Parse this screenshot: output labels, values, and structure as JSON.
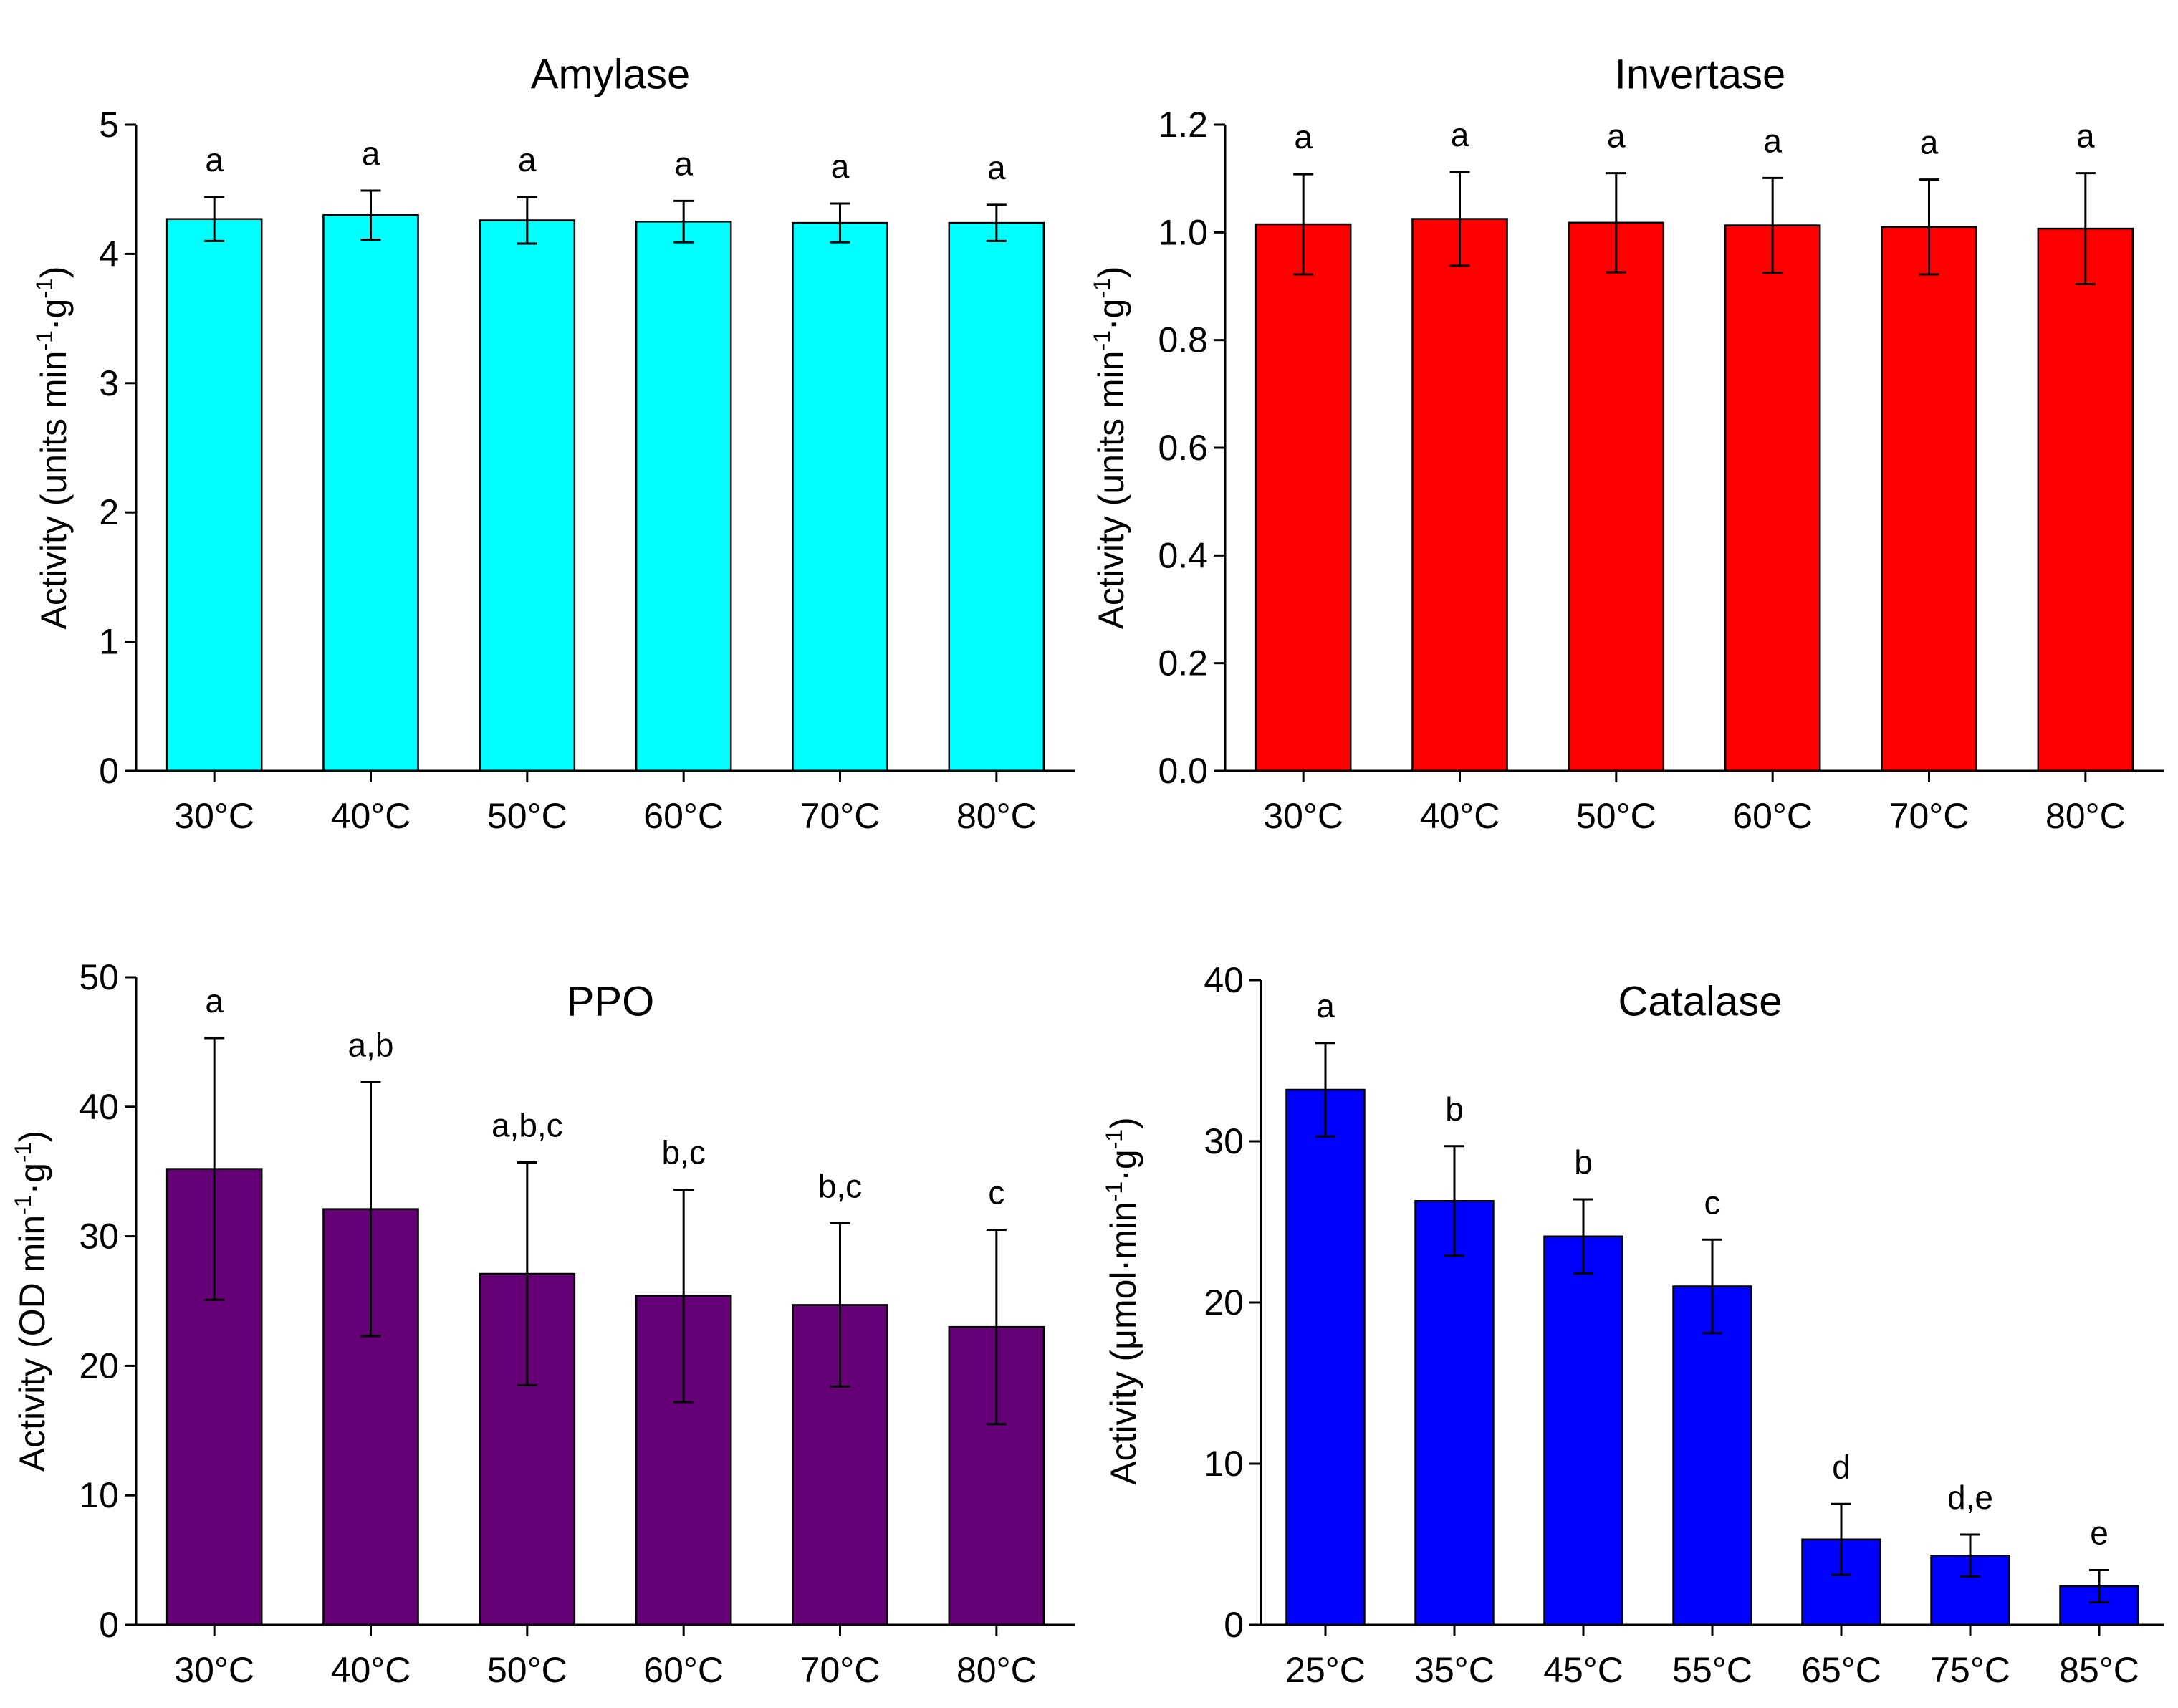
{
  "chart_data": [
    {
      "type": "bar",
      "title": "Amylase",
      "ylabel": "Activity (units min⁻¹·g⁻¹)",
      "ylabel_parts": [
        "Activity (units min",
        "-1",
        "·g",
        "-1",
        ")"
      ],
      "xlabel": "",
      "ylim": [
        0,
        5
      ],
      "yticks": [
        "0",
        "1",
        "2",
        "3",
        "4",
        "5"
      ],
      "categories": [
        "30°C",
        "40°C",
        "50°C",
        "60°C",
        "70°C",
        "80°C"
      ],
      "values": [
        4.27,
        4.3,
        4.26,
        4.25,
        4.24,
        4.24
      ],
      "errors": [
        0.17,
        0.19,
        0.18,
        0.16,
        0.15,
        0.14
      ],
      "significance": [
        "a",
        "a",
        "a",
        "a",
        "a",
        "a"
      ],
      "color": "#00FFFF"
    },
    {
      "type": "bar",
      "title": "Invertase",
      "ylabel": "Activity (units min⁻¹·g⁻¹)",
      "ylabel_parts": [
        "Activity (units min",
        "-1",
        "·g",
        "-1",
        ")"
      ],
      "xlabel": "",
      "ylim": [
        0,
        1.2
      ],
      "yticks": [
        "0.0",
        "0.2",
        "0.4",
        "0.6",
        "0.8",
        "1.0",
        "1.2"
      ],
      "categories": [
        "30°C",
        "40°C",
        "50°C",
        "60°C",
        "70°C",
        "80°C"
      ],
      "values": [
        1.015,
        1.025,
        1.018,
        1.013,
        1.01,
        1.007
      ],
      "errors": [
        0.093,
        0.087,
        0.092,
        0.088,
        0.088,
        0.103
      ],
      "significance": [
        "a",
        "a",
        "a",
        "a",
        "a",
        "a"
      ],
      "color": "#FF0000"
    },
    {
      "type": "bar",
      "title": "PPO",
      "ylabel": "Activity (OD min⁻¹·g⁻¹)",
      "ylabel_parts": [
        "Activity (OD min",
        "-1",
        "·g",
        "-1",
        ")"
      ],
      "xlabel": "",
      "ylim": [
        0,
        50
      ],
      "yticks": [
        "0",
        "10",
        "20",
        "30",
        "40",
        "50"
      ],
      "categories": [
        "30°C",
        "40°C",
        "50°C",
        "60°C",
        "70°C",
        "80°C"
      ],
      "values": [
        35.2,
        32.1,
        27.1,
        25.4,
        24.7,
        23.0
      ],
      "errors": [
        10.1,
        9.8,
        8.6,
        8.2,
        6.3,
        7.5
      ],
      "significance": [
        "a",
        "a,b",
        "a,b,c",
        "b,c",
        "b,c",
        "c"
      ],
      "color": "#660077"
    },
    {
      "type": "bar",
      "title": "Catalase",
      "ylabel": "Activity (μmol·min⁻¹·g⁻¹)",
      "ylabel_parts": [
        "Activity (μmol·min",
        "-1",
        "·g",
        "-1",
        ")"
      ],
      "xlabel": "",
      "ylim": [
        0,
        40
      ],
      "yticks": [
        "0",
        "10",
        "20",
        "30",
        "40"
      ],
      "categories": [
        "25°C",
        "35°C",
        "45°C",
        "55°C",
        "65°C",
        "75°C",
        "85°C"
      ],
      "values": [
        33.2,
        26.3,
        24.1,
        21.0,
        5.3,
        4.3,
        2.4
      ],
      "errors": [
        2.9,
        3.4,
        2.3,
        2.9,
        2.2,
        1.3,
        1.0
      ],
      "significance": [
        "a",
        "b",
        "b",
        "c",
        "d",
        "d,e",
        "e"
      ],
      "color": "#0000FF"
    }
  ]
}
